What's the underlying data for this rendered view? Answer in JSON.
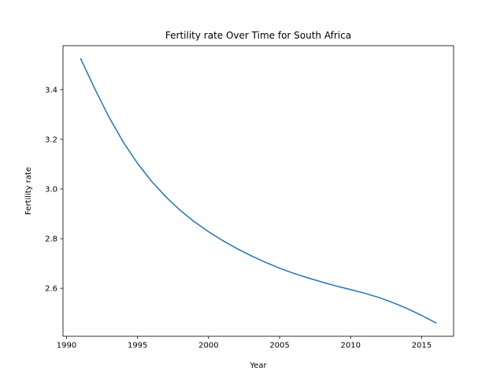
{
  "chart_data": {
    "type": "line",
    "title": "Fertility rate Over Time for South Africa",
    "xlabel": "Year",
    "ylabel": "Fertility rate",
    "xlim": [
      1989.75,
      2017.25
    ],
    "ylim": [
      2.407,
      3.577
    ],
    "xticks": [
      1990,
      1995,
      2000,
      2005,
      2010,
      2015
    ],
    "yticks": [
      2.6,
      2.8,
      3.0,
      3.2,
      3.4
    ],
    "xtick_labels": [
      "1990",
      "1995",
      "2000",
      "2005",
      "2010",
      "2015"
    ],
    "ytick_labels": [
      "2.6",
      "2.8",
      "3.0",
      "3.2",
      "3.4"
    ],
    "grid": false,
    "legend": "none",
    "series": [
      {
        "color": "#1f77b4",
        "x": [
          1991,
          1992,
          1993,
          1994,
          1995,
          1996,
          1997,
          1998,
          1999,
          2000,
          2001,
          2002,
          2003,
          2004,
          2005,
          2006,
          2007,
          2008,
          2009,
          2010,
          2011,
          2012,
          2013,
          2014,
          2015,
          2016
        ],
        "y": [
          3.524,
          3.402,
          3.288,
          3.188,
          3.103,
          3.03,
          2.968,
          2.914,
          2.868,
          2.828,
          2.792,
          2.76,
          2.731,
          2.705,
          2.681,
          2.66,
          2.642,
          2.625,
          2.609,
          2.595,
          2.58,
          2.563,
          2.542,
          2.518,
          2.491,
          2.461
        ]
      }
    ]
  }
}
